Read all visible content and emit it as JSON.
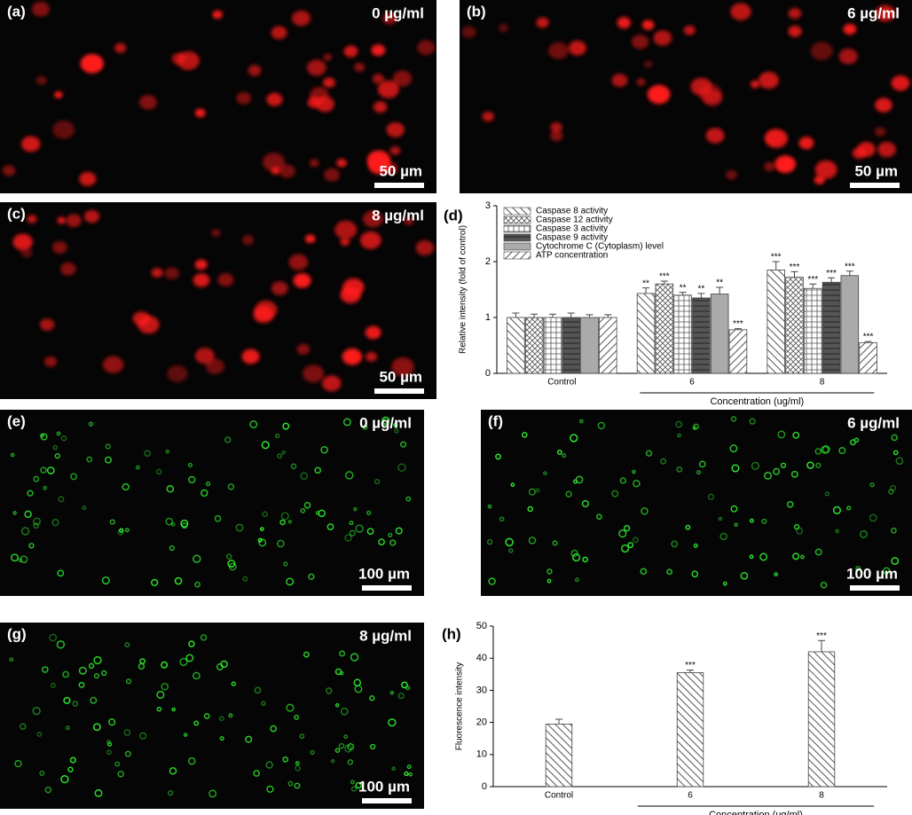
{
  "panels": [
    {
      "label": "(a)",
      "concentration": "0 µg/ml",
      "scale": "50 µm",
      "dot_color": "#ff1a1a"
    },
    {
      "label": "(b)",
      "concentration": "6 µg/ml",
      "scale": "50 µm",
      "dot_color": "#ff1a1a"
    },
    {
      "label": "(c)",
      "concentration": "8 µg/ml",
      "scale": "50 µm",
      "dot_color": "#ff1a1a"
    },
    {
      "label": "(e)",
      "concentration": "0 µg/ml",
      "scale": "100 µm",
      "dot_color": "#2ee82e"
    },
    {
      "label": "(f)",
      "concentration": "6 µg/ml",
      "scale": "100 µm",
      "dot_color": "#2ee82e"
    },
    {
      "label": "(g)",
      "concentration": "8 µg/ml",
      "scale": "100 µm",
      "dot_color": "#2ee82e"
    }
  ],
  "chart_data": [
    {
      "type": "bar",
      "panel_label": "(d)",
      "y_label": "Relative intensity (fold of control)",
      "x_label": "Concentration (ug/ml)",
      "categories": [
        "Control",
        "6",
        "8"
      ],
      "ylim": [
        0,
        3
      ],
      "yticks": [
        0,
        1,
        2,
        3
      ],
      "series": [
        {
          "name": "Caspase 8 activity",
          "color": "#555555",
          "values": [
            1.0,
            1.43,
            1.85
          ],
          "errors": [
            0.08,
            0.1,
            0.15
          ],
          "marks": [
            null,
            "**",
            "***"
          ]
        },
        {
          "name": "Caspase 12 activity",
          "color": "#555555",
          "values": [
            1.0,
            1.6,
            1.72
          ],
          "errors": [
            0.06,
            0.05,
            0.1
          ],
          "marks": [
            null,
            "***",
            "***"
          ]
        },
        {
          "name": "Caspase 3 activity",
          "color": "#555555",
          "values": [
            1.0,
            1.4,
            1.52
          ],
          "errors": [
            0.06,
            0.05,
            0.08
          ],
          "marks": [
            null,
            "**",
            "***"
          ]
        },
        {
          "name": "Caspase 9 activity",
          "color": "#555555",
          "values": [
            1.0,
            1.35,
            1.63
          ],
          "errors": [
            0.08,
            0.08,
            0.08
          ],
          "marks": [
            null,
            "**",
            "***"
          ]
        },
        {
          "name": "Cytochrome C (Cytoplasm) level",
          "color": "#999999",
          "values": [
            1.0,
            1.42,
            1.75
          ],
          "errors": [
            0.05,
            0.12,
            0.08
          ],
          "marks": [
            null,
            "**",
            "***"
          ]
        },
        {
          "name": "ATP concentration",
          "color": "#555555",
          "values": [
            1.0,
            0.78,
            0.55
          ],
          "errors": [
            0.05,
            0.02,
            0.02
          ],
          "marks": [
            null,
            "***",
            "***"
          ]
        }
      ]
    },
    {
      "type": "bar",
      "panel_label": "(h)",
      "y_label": "Fluorescence intensity",
      "x_label": "Concentration (ug/ml)",
      "categories": [
        "Control",
        "6",
        "8"
      ],
      "ylim": [
        0,
        50
      ],
      "yticks": [
        0,
        10,
        20,
        30,
        40,
        50
      ],
      "values": [
        19.5,
        35.5,
        42
      ],
      "errors": [
        1.5,
        0.8,
        3.5
      ],
      "marks": [
        null,
        "***",
        "***"
      ],
      "color": "#555555"
    }
  ]
}
